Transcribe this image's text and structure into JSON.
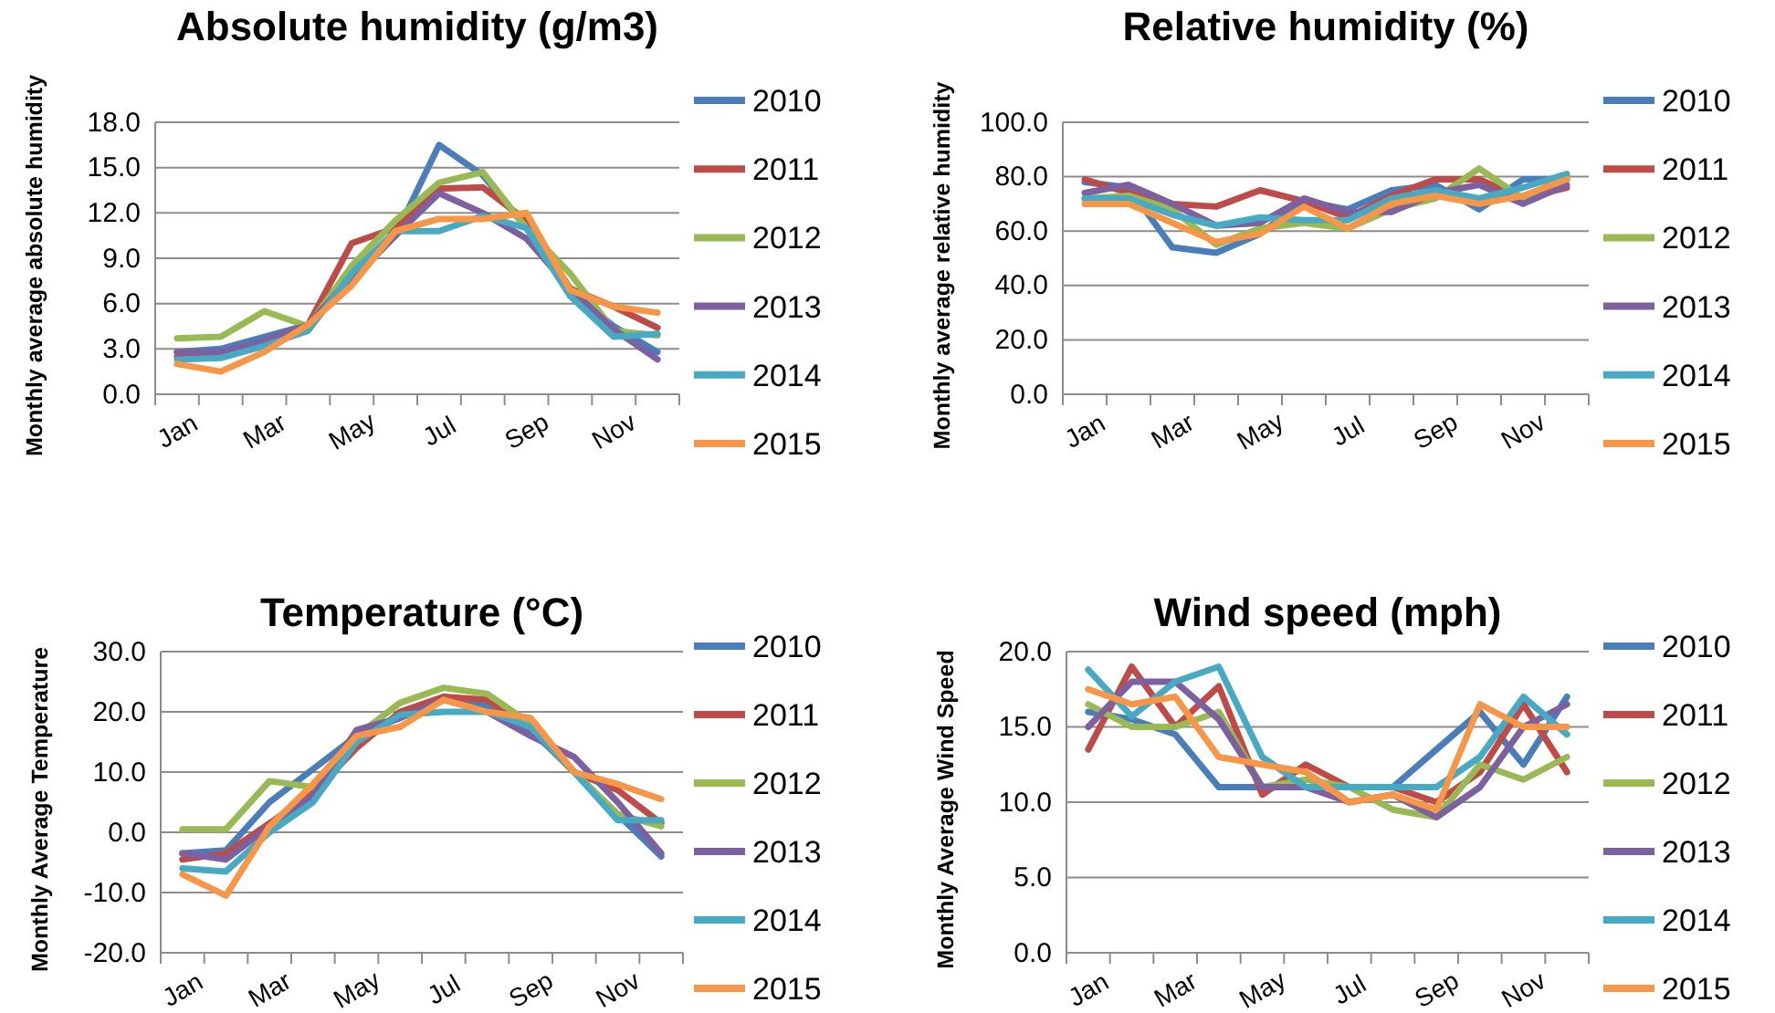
{
  "chart_data": [
    {
      "type": "line",
      "title": "Absolute humidity (g/m3)",
      "ylabel": "Monthly average absolute humidity",
      "categories": [
        "Jan",
        null,
        "Mar",
        null,
        "May",
        null,
        "Jul",
        null,
        "Sep",
        null,
        "Nov",
        null
      ],
      "ylim": [
        0,
        18
      ],
      "yticks": [
        {
          "value": 0,
          "label": "0.0"
        },
        {
          "value": 3,
          "label": "3.0"
        },
        {
          "value": 6,
          "label": "6.0"
        },
        {
          "value": 9,
          "label": "9.0"
        },
        {
          "value": 12,
          "label": "12.0"
        },
        {
          "value": 15,
          "label": "15.0"
        },
        {
          "value": 18,
          "label": "18.0"
        }
      ],
      "grid": "y",
      "legend": "right",
      "series": [
        {
          "name": "2010",
          "color": "#4a7ebb",
          "values": [
            2.8,
            3.0,
            3.8,
            4.6,
            7.5,
            10.5,
            16.5,
            14.5,
            11.0,
            6.8,
            4.5,
            2.8
          ]
        },
        {
          "name": "2011",
          "color": "#be4b48",
          "values": [
            2.5,
            2.6,
            3.5,
            4.6,
            10.0,
            11.0,
            13.6,
            13.7,
            11.5,
            7.0,
            5.8,
            4.4
          ]
        },
        {
          "name": "2012",
          "color": "#98b954",
          "values": [
            3.7,
            3.8,
            5.5,
            4.5,
            8.5,
            11.5,
            14.0,
            14.7,
            11.0,
            8.0,
            4.2,
            3.9
          ]
        },
        {
          "name": "2013",
          "color": "#7d60a0",
          "values": [
            2.8,
            2.8,
            3.5,
            4.6,
            7.8,
            10.5,
            13.3,
            12.0,
            10.3,
            7.0,
            4.3,
            2.3
          ]
        },
        {
          "name": "2014",
          "color": "#46aac5",
          "values": [
            2.3,
            2.4,
            3.2,
            4.2,
            8.0,
            10.8,
            10.8,
            11.8,
            11.0,
            6.5,
            3.8,
            4.0
          ]
        },
        {
          "name": "2015",
          "color": "#f79646",
          "values": [
            2.0,
            1.5,
            2.8,
            4.6,
            7.2,
            10.8,
            11.6,
            11.6,
            12.0,
            6.9,
            5.8,
            5.4
          ]
        }
      ]
    },
    {
      "type": "line",
      "title": "Relative humidity (%)",
      "ylabel": "Monthly average relative humidity",
      "categories": [
        "Jan",
        null,
        "Mar",
        null,
        "May",
        null,
        "Jul",
        null,
        "Sep",
        null,
        "Nov",
        null
      ],
      "ylim": [
        0,
        100
      ],
      "yticks": [
        {
          "value": 0,
          "label": "0.0"
        },
        {
          "value": 20,
          "label": "20.0"
        },
        {
          "value": 40,
          "label": "40.0"
        },
        {
          "value": 60,
          "label": "60.0"
        },
        {
          "value": 80,
          "label": "80.0"
        },
        {
          "value": 100,
          "label": "100.0"
        }
      ],
      "grid": "y",
      "legend": "right",
      "series": [
        {
          "name": "2010",
          "color": "#4a7ebb",
          "values": [
            78,
            76,
            54,
            52,
            59,
            71,
            68,
            75,
            77,
            68,
            79,
            79
          ]
        },
        {
          "name": "2011",
          "color": "#be4b48",
          "values": [
            79,
            74,
            70,
            69,
            75,
            71,
            65,
            73,
            79,
            79,
            72,
            76
          ]
        },
        {
          "name": "2012",
          "color": "#98b954",
          "values": [
            72,
            73,
            68,
            55,
            61,
            63,
            61,
            68,
            72,
            83,
            72,
            80
          ]
        },
        {
          "name": "2013",
          "color": "#7d60a0",
          "values": [
            74,
            77,
            70,
            62,
            63,
            72,
            67,
            67,
            74,
            77,
            70,
            77
          ]
        },
        {
          "name": "2014",
          "color": "#46aac5",
          "values": [
            72,
            72,
            66,
            62,
            65,
            64,
            64,
            72,
            75,
            72,
            76,
            81
          ]
        },
        {
          "name": "2015",
          "color": "#f79646",
          "values": [
            70,
            70,
            63,
            56,
            59,
            69,
            61,
            70,
            73,
            70,
            73,
            79
          ]
        }
      ]
    },
    {
      "type": "line",
      "title": "Temperature (°C)",
      "ylabel": "Monthly Average Temperature",
      "categories": [
        "Jan",
        null,
        "Mar",
        null,
        "May",
        null,
        "Jul",
        null,
        "Sep",
        null,
        "Nov",
        null
      ],
      "ylim": [
        -20,
        30
      ],
      "yticks": [
        {
          "value": -20,
          "label": "-20.0"
        },
        {
          "value": -10,
          "label": "-10.0"
        },
        {
          "value": 0,
          "label": "0.0"
        },
        {
          "value": 10,
          "label": "10.0"
        },
        {
          "value": 20,
          "label": "20.0"
        },
        {
          "value": 30,
          "label": "30.0"
        }
      ],
      "grid": "y",
      "legend": "right",
      "series": [
        {
          "name": "2010",
          "color": "#4a7ebb",
          "values": [
            -3.5,
            -3,
            5,
            10.5,
            16,
            19,
            22.5,
            21,
            17,
            10,
            3,
            -4
          ]
        },
        {
          "name": "2011",
          "color": "#be4b48",
          "values": [
            -4.5,
            -3.5,
            1.5,
            6.5,
            14,
            20,
            22.5,
            22,
            17.5,
            10,
            7,
            1.5
          ]
        },
        {
          "name": "2012",
          "color": "#98b954",
          "values": [
            0.5,
            0.5,
            8.5,
            7.5,
            16,
            21.5,
            24,
            23,
            18,
            10,
            3,
            1
          ]
        },
        {
          "name": "2013",
          "color": "#7d60a0",
          "values": [
            -3.5,
            -4.5,
            1,
            6,
            17,
            19,
            22,
            20,
            16,
            12.5,
            5,
            -3.5
          ]
        },
        {
          "name": "2014",
          "color": "#46aac5",
          "values": [
            -6,
            -6.5,
            0,
            5,
            15,
            19.5,
            20,
            20,
            17.5,
            10,
            2,
            2
          ]
        },
        {
          "name": "2015",
          "color": "#f79646",
          "values": [
            -7,
            -10.5,
            1,
            8,
            16,
            17.5,
            22,
            20,
            19,
            10,
            8,
            5.5
          ]
        }
      ]
    },
    {
      "type": "line",
      "title": "Wind speed (mph)",
      "ylabel": "Monthly Average Wind Speed",
      "categories": [
        "Jan",
        null,
        "Mar",
        null,
        "May",
        null,
        "Jul",
        null,
        "Sep",
        null,
        "Nov",
        null
      ],
      "ylim": [
        0,
        20
      ],
      "yticks": [
        {
          "value": 0,
          "label": "0.0"
        },
        {
          "value": 5,
          "label": "5.0"
        },
        {
          "value": 10,
          "label": "10.0"
        },
        {
          "value": 15,
          "label": "15.0"
        },
        {
          "value": 20,
          "label": "20.0"
        }
      ],
      "grid": "y",
      "legend": "right",
      "series": [
        {
          "name": "2010",
          "color": "#4a7ebb",
          "values": [
            16,
            15.5,
            14.5,
            11,
            11,
            11,
            11,
            11,
            13.5,
            16,
            12.5,
            17
          ]
        },
        {
          "name": "2011",
          "color": "#be4b48",
          "values": [
            13.5,
            19,
            15,
            17.7,
            10.5,
            12.5,
            11,
            11,
            10,
            12,
            16.5,
            12
          ]
        },
        {
          "name": "2012",
          "color": "#98b954",
          "values": [
            16.5,
            15,
            15,
            16,
            11,
            11.5,
            11,
            9.5,
            9,
            12.5,
            11.5,
            13
          ]
        },
        {
          "name": "2013",
          "color": "#7d60a0",
          "values": [
            15,
            18,
            18,
            15.5,
            11,
            11,
            10,
            10.5,
            9,
            11,
            15,
            16.5
          ]
        },
        {
          "name": "2014",
          "color": "#46aac5",
          "values": [
            18.8,
            15.7,
            18,
            19,
            13,
            11,
            11,
            11,
            11,
            13,
            17,
            14.5
          ]
        },
        {
          "name": "2015",
          "color": "#f79646",
          "values": [
            17.5,
            16.5,
            17,
            13,
            12.5,
            12,
            10,
            10.5,
            9.5,
            16.5,
            15,
            15
          ]
        }
      ]
    }
  ]
}
